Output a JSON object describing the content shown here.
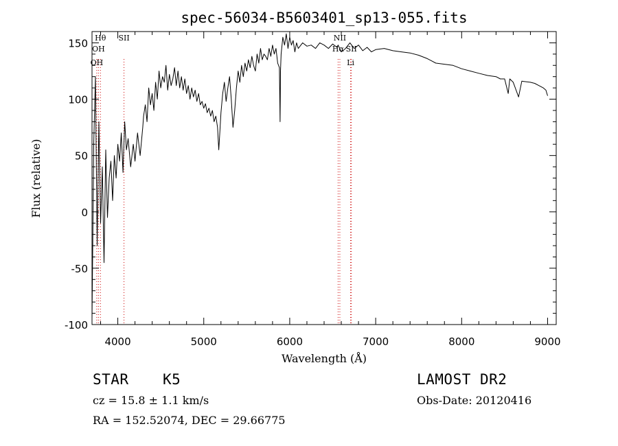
{
  "chart_data": {
    "type": "line",
    "title": "spec-56034-B5603401_sp13-055.fits",
    "xlabel": "Wavelength (Å)",
    "ylabel": "Flux (relative)",
    "xlim": [
      3700,
      9100
    ],
    "ylim": [
      -100,
      160
    ],
    "xticks": [
      4000,
      5000,
      6000,
      7000,
      8000,
      9000
    ],
    "yticks": [
      -100,
      -50,
      0,
      50,
      100,
      150
    ],
    "line_color": "#000000",
    "marker_color": "#cc0000",
    "series": [
      {
        "x": [
          3700,
          3720,
          3740,
          3760,
          3780,
          3800,
          3820,
          3840,
          3860,
          3880,
          3900,
          3920,
          3940,
          3960,
          3980,
          4000,
          4020,
          4040,
          4060,
          4080,
          4100,
          4120,
          4150,
          4180,
          4200,
          4230,
          4260,
          4290,
          4300,
          4320,
          4340,
          4360,
          4380,
          4400,
          4420,
          4440,
          4460,
          4480,
          4500,
          4520,
          4540,
          4560,
          4580,
          4600,
          4620,
          4640,
          4660,
          4680,
          4700,
          4720,
          4740,
          4760,
          4780,
          4800,
          4820,
          4840,
          4860,
          4880,
          4900,
          4920,
          4940,
          4960,
          4980,
          5000,
          5020,
          5040,
          5060,
          5080,
          5100,
          5120,
          5140,
          5160,
          5175,
          5185,
          5200,
          5220,
          5240,
          5260,
          5280,
          5300,
          5320,
          5340,
          5360,
          5380,
          5400,
          5420,
          5440,
          5460,
          5480,
          5500,
          5520,
          5540,
          5560,
          5580,
          5600,
          5620,
          5640,
          5660,
          5680,
          5700,
          5720,
          5740,
          5760,
          5780,
          5800,
          5820,
          5840,
          5860,
          5880,
          5888,
          5893,
          5900,
          5920,
          5940,
          5960,
          5980,
          6000,
          6020,
          6040,
          6060,
          6080,
          6100,
          6150,
          6200,
          6250,
          6300,
          6350,
          6400,
          6450,
          6500,
          6550,
          6563,
          6600,
          6650,
          6700,
          6750,
          6800,
          6850,
          6900,
          6950,
          7000,
          7100,
          7200,
          7300,
          7400,
          7500,
          7600,
          7650,
          7700,
          7800,
          7900,
          8000,
          8100,
          8200,
          8300,
          8400,
          8450,
          8500,
          8542,
          8560,
          8600,
          8662,
          8700,
          8800,
          8850,
          8900,
          8950,
          8980,
          9000
        ],
        "values": [
          -95,
          60,
          120,
          -30,
          80,
          -10,
          40,
          -45,
          55,
          -5,
          30,
          45,
          10,
          50,
          30,
          60,
          45,
          70,
          35,
          80,
          55,
          65,
          40,
          60,
          45,
          70,
          50,
          75,
          85,
          95,
          80,
          110,
          95,
          105,
          90,
          115,
          100,
          125,
          110,
          120,
          115,
          130,
          108,
          122,
          112,
          118,
          128,
          112,
          125,
          110,
          120,
          108,
          118,
          105,
          112,
          100,
          110,
          102,
          108,
          98,
          105,
          95,
          98,
          92,
          96,
          88,
          92,
          85,
          90,
          80,
          85,
          75,
          55,
          68,
          88,
          105,
          115,
          98,
          110,
          120,
          100,
          75,
          90,
          110,
          125,
          115,
          130,
          120,
          132,
          125,
          135,
          128,
          138,
          130,
          125,
          140,
          132,
          145,
          135,
          140,
          138,
          135,
          145,
          138,
          148,
          140,
          145,
          132,
          128,
          80,
          125,
          140,
          155,
          148,
          158,
          145,
          155,
          148,
          152,
          142,
          150,
          145,
          150,
          147,
          148,
          145,
          150,
          148,
          145,
          149,
          146,
          148,
          142,
          145,
          150,
          145,
          148,
          143,
          146,
          142,
          144,
          145,
          143,
          142,
          141,
          139,
          136,
          134,
          132,
          131,
          130,
          127,
          125,
          123,
          121,
          120,
          118,
          118,
          105,
          118,
          115,
          102,
          116,
          115,
          114,
          112,
          110,
          108,
          103
        ]
      }
    ],
    "annotations": [
      {
        "label": "Hθ",
        "x": 3798
      },
      {
        "label": "OH",
        "x": 3775
      },
      {
        "label": "OH",
        "x": 3755
      },
      {
        "label": "SII",
        "x": 4072
      },
      {
        "label": "NII",
        "x": 6583
      },
      {
        "label": "Hα",
        "x": 6563
      },
      {
        "label": "SII",
        "x": 6717
      },
      {
        "label": "Li",
        "x": 6708
      }
    ]
  },
  "info": {
    "object_type": "STAR",
    "subclass": "K5",
    "survey": "LAMOST DR2",
    "redshift": "cz = 15.8 ± 1.1 km/s",
    "obs_date": "Obs-Date: 20120416",
    "coords": "RA = 152.52074, DEC =  29.66775"
  }
}
